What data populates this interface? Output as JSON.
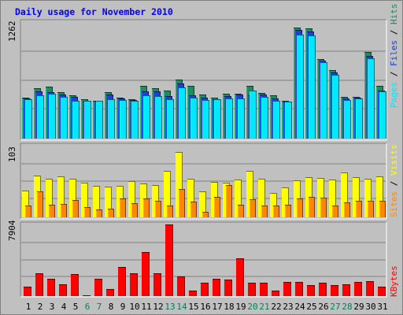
{
  "chart_data": [
    {
      "type": "bar",
      "title": "Daily usage for November 2010",
      "max_label": "1262",
      "legend": {
        "pages": {
          "label": "Pages",
          "color": "#00e8ff"
        },
        "files": {
          "label": "Files",
          "color": "#1f3fd8"
        },
        "hits": {
          "label": "Hits",
          "color": "#208a60"
        },
        "separator": " / "
      },
      "ylim": [
        0,
        1262
      ],
      "series": [
        {
          "name": "Hits",
          "values": [
            460,
            566,
            581,
            517,
            488,
            442,
            422,
            520,
            458,
            441,
            590,
            566,
            534,
            658,
            589,
            497,
            460,
            502,
            505,
            589,
            515,
            484,
            425,
            1242,
            1235,
            891,
            767,
            467,
            467,
            973,
            591
          ]
        },
        {
          "name": "Files",
          "values": [
            447,
            533,
            522,
            497,
            471,
            419,
            424,
            490,
            450,
            431,
            527,
            530,
            476,
            620,
            486,
            457,
            442,
            476,
            490,
            483,
            497,
            450,
            414,
            1215,
            1200,
            876,
            738,
            450,
            456,
            926,
            541
          ]
        },
        {
          "name": "Pages",
          "values": [
            440,
            488,
            506,
            468,
            422,
            420,
            421,
            442,
            431,
            426,
            486,
            473,
            437,
            573,
            456,
            429,
            437,
            447,
            448,
            536,
            466,
            421,
            412,
            1164,
            1157,
            860,
            713,
            435,
            452,
            899,
            527
          ]
        }
      ]
    },
    {
      "type": "bar",
      "max_label": "103",
      "legend": {
        "sites": {
          "label": "Sites",
          "color": "#ff8800"
        },
        "visits": {
          "label": "Visits",
          "color": "#ffff00"
        },
        "separator": " / "
      },
      "ylim": [
        0,
        103
      ],
      "series": [
        {
          "name": "Visits",
          "values": [
            40,
            62,
            57,
            61,
            57,
            52,
            47,
            46,
            47,
            54,
            50,
            48,
            69,
            97,
            57,
            39,
            53,
            51,
            56,
            69,
            57,
            36,
            45,
            55,
            60,
            59,
            56,
            67,
            60,
            57,
            61
          ]
        },
        {
          "name": "Sites",
          "values": [
            17,
            39,
            19,
            20,
            26,
            15,
            12,
            13,
            28,
            21,
            28,
            25,
            18,
            42,
            23,
            8,
            30,
            48,
            19,
            27,
            18,
            17,
            19,
            28,
            31,
            29,
            18,
            22,
            25,
            25,
            24
          ]
        }
      ]
    },
    {
      "type": "bar",
      "max_label": "7904",
      "legend": {
        "kbytes": {
          "label": "KBytes",
          "color": "#ff0000"
        }
      },
      "ylim": [
        0,
        7904
      ],
      "series": [
        {
          "name": "KBytes",
          "values": [
            1045,
            2492,
            1906,
            1295,
            2407,
            76,
            1922,
            752,
            3248,
            2492,
            4875,
            2556,
            7904,
            2140,
            585,
            1445,
            1915,
            1823,
            4130,
            1457,
            1508,
            599,
            1536,
            1529,
            1212,
            1508,
            1223,
            1323,
            1540,
            1634,
            1004
          ]
        }
      ]
    }
  ],
  "x_days": [
    "1",
    "2",
    "3",
    "4",
    "5",
    "6",
    "7",
    "8",
    "9",
    "10",
    "11",
    "12",
    "13",
    "14",
    "15",
    "16",
    "17",
    "18",
    "19",
    "20",
    "21",
    "22",
    "23",
    "24",
    "25",
    "26",
    "27",
    "28",
    "29",
    "30",
    "31"
  ],
  "weekend_days": [
    6,
    7,
    13,
    14,
    20,
    21,
    27,
    28
  ],
  "colors": {
    "weekday": "#000000",
    "weekend": "#00805c",
    "plot_bg": "#c0c0c0",
    "gridline": "#808080"
  }
}
